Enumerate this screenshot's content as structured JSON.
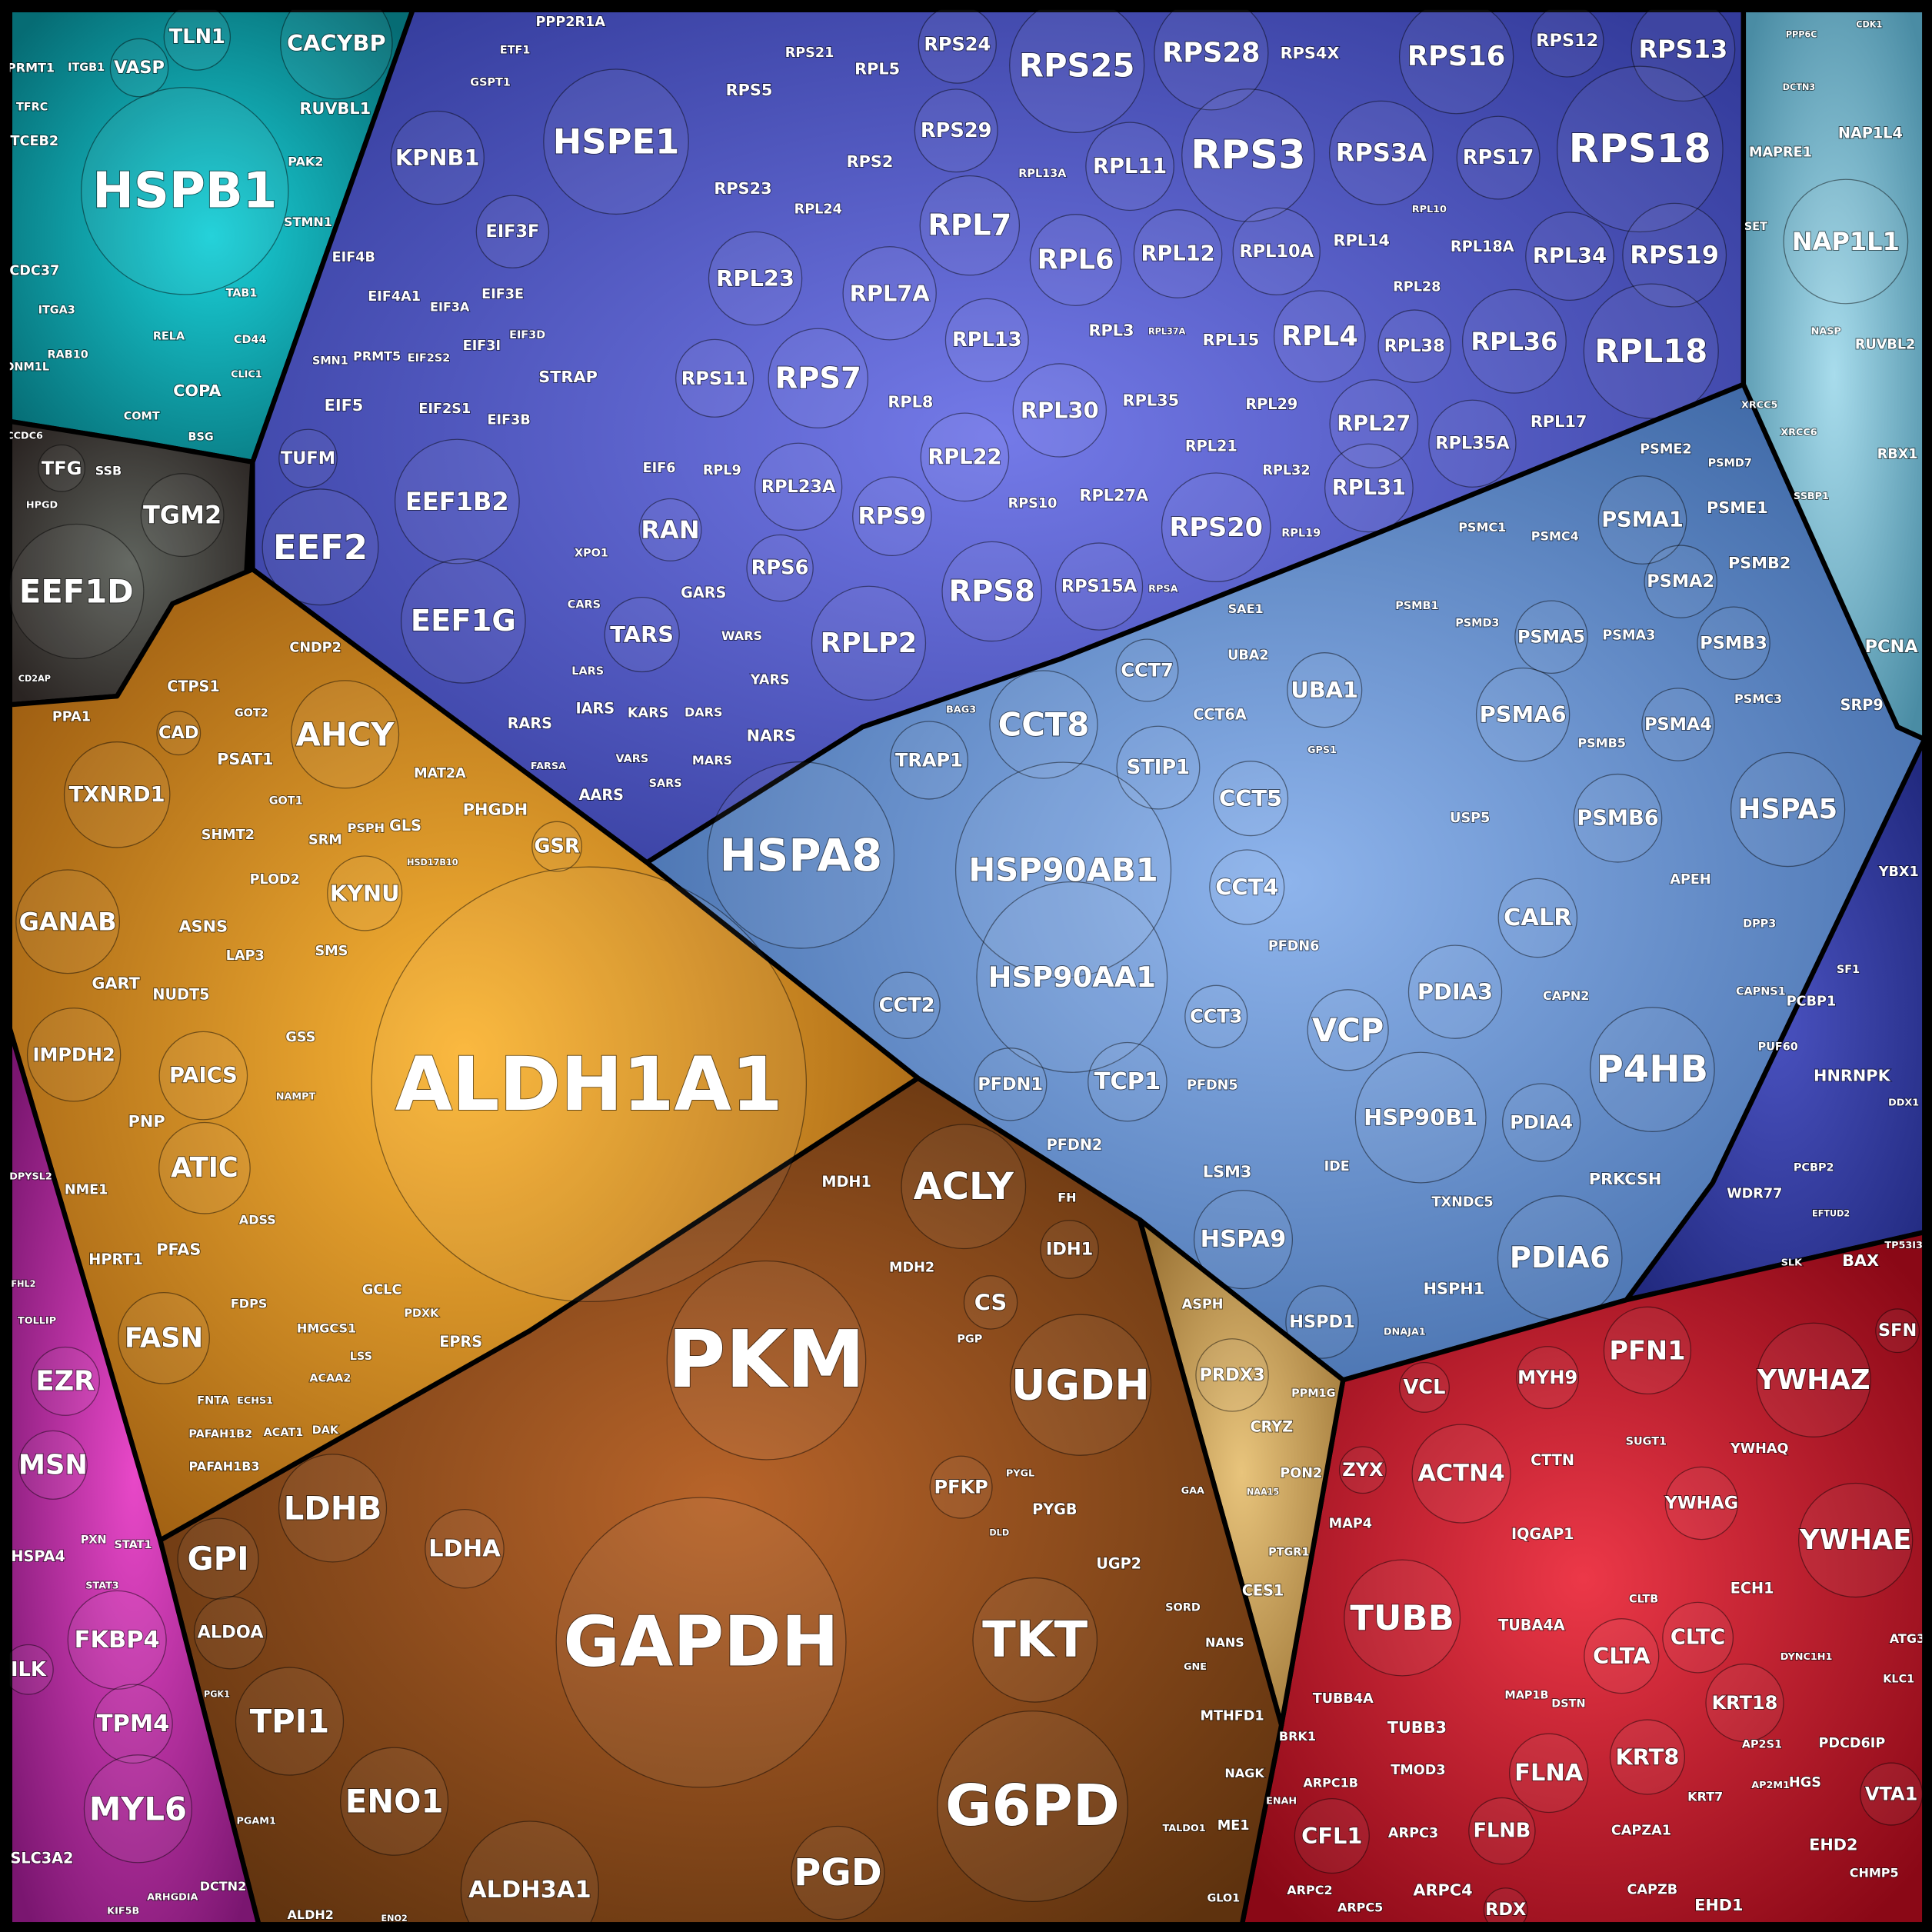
{
  "chart_data": {
    "type": "voronoi-treemap",
    "background": "#000000",
    "cell_label_color": "#ffffff"
  },
  "regions": [
    {
      "id": "teal",
      "colors": [
        "#1ad0d8",
        "#066c74"
      ],
      "labels": [
        "HSPB1",
        "CACYBP",
        "TLN1",
        "VASP",
        "RUVBL1",
        "PRMT1",
        "TCEB2",
        "CDC37",
        "COPA",
        "STMN1",
        "PAK2",
        "TFRC",
        "ITGB1",
        "DNM1L",
        "RAB10",
        "ITGA3",
        "CD44",
        "CLIC1",
        "COMT",
        "BSG",
        "TAB1",
        "RELA"
      ]
    },
    {
      "id": "gray",
      "colors": [
        "#5e625c",
        "#2a2422"
      ],
      "labels": [
        "TFG",
        "SSB",
        "TGM2",
        "EEF1D",
        "CCDC6",
        "HPGD",
        "CD2AP"
      ]
    },
    {
      "id": "purple",
      "colors": [
        "#747ae8",
        "#343c9c"
      ],
      "labels": [
        "HSPE1",
        "KPNB1",
        "PPP2R1A",
        "ETF1",
        "GSPT1",
        "EIF3F",
        "EIF4B",
        "EIF4A1",
        "EIF3A",
        "EIF3E",
        "EIF3I",
        "EIF3D",
        "STRAP",
        "EIF5",
        "EIF2S1",
        "EIF3B",
        "EIF2S2",
        "PRMT5",
        "SMN1",
        "TUFM",
        "EEF1B2",
        "EEF2",
        "EEF1G",
        "RAN",
        "EIF6",
        "TARS",
        "GARS",
        "WARS",
        "YARS",
        "NARS",
        "RARS",
        "IARS",
        "KARS",
        "DARS",
        "MARS",
        "AARS",
        "VARS",
        "SARS",
        "LARS",
        "CARS",
        "FARSA",
        "XPO1",
        "RPS5",
        "RPS21",
        "RPL5",
        "RPS24",
        "RPS25",
        "RPS28",
        "RPS4X",
        "RPS16",
        "RPS12",
        "RPS13",
        "RPS29",
        "RPS2",
        "RPS23",
        "RPL24",
        "RPL7",
        "RPS3",
        "RPS3A",
        "RPS17",
        "RPS18",
        "RPL11",
        "RPL13A",
        "RPL6",
        "RPL12",
        "RPL10A",
        "RPL14",
        "RPL18A",
        "RPL34",
        "RPS19",
        "RPL10",
        "RPL28",
        "RPL23",
        "RPL7A",
        "RPL13",
        "RPL3",
        "RPL37A",
        "RPL15",
        "RPL4",
        "RPL38",
        "RPL36",
        "RPL18",
        "RPS11",
        "RPS7",
        "RPL8",
        "RPL30",
        "RPL35",
        "RPL29",
        "RPL27",
        "RPL17",
        "RPL35A",
        "RPL9",
        "RPL23A",
        "RPL22",
        "RPL21",
        "RPL32",
        "RPL31",
        "RPS9",
        "RPS10",
        "RPL27A",
        "RPS20",
        "RPL19",
        "RPS6",
        "RPS8",
        "RPS15A",
        "RPSA",
        "RPLP2"
      ]
    },
    {
      "id": "lightblue",
      "colors": [
        "#8eb4ec",
        "#3c66a4"
      ],
      "labels": [
        "HSPA8",
        "CCT8",
        "TRAP1",
        "STIP1",
        "CCT7",
        "CCT6A",
        "CCT5",
        "HSP90AB1",
        "CCT4",
        "HSP90AA1",
        "CCT2",
        "CCT3",
        "PFDN6",
        "PFDN1",
        "TCP1",
        "PFDN5",
        "PFDN2",
        "LSM3",
        "HSPA9",
        "HSPD1",
        "VCP",
        "HSP90B1",
        "PDIA3",
        "PDIA4",
        "PDIA6",
        "HSPH1",
        "CALR",
        "P4HB",
        "PRKCSH",
        "CAPN2",
        "TXNDC5",
        "DNAJA1",
        "IDE",
        "UBA1",
        "UBA2",
        "SAE1",
        "USP5",
        "PSMA1",
        "PSME1",
        "PSMA2",
        "PSMB2",
        "PSMA5",
        "PSMA3",
        "PSMB3",
        "PSMA6",
        "PSMA4",
        "PSMB6",
        "HSPA5",
        "PSME2",
        "PSMD7",
        "PSMC4",
        "PSMC1",
        "PSMD3",
        "PSMB1",
        "PSMB5",
        "PSMC3",
        "APEH",
        "DPP3",
        "CAPNS1",
        "SRP9",
        "PCNA",
        "BAG3",
        "GPS1"
      ]
    },
    {
      "id": "rightteal",
      "colors": [
        "#a8dcec",
        "#4a8ca4"
      ],
      "labels": [
        "NAP1L1",
        "NAP1L4",
        "MAPRE1",
        "SET",
        "RUVBL2",
        "NASP",
        "PPP6C",
        "CDK1",
        "DCTN3",
        "XRCC5",
        "XRCC6",
        "RBX1",
        "SSBP1"
      ]
    },
    {
      "id": "darkblue",
      "colors": [
        "#4a52c0",
        "#222a80"
      ],
      "labels": [
        "YBX1",
        "PCBP1",
        "HNRNPK",
        "PUF60",
        "WDR77",
        "PCBP2",
        "SF1",
        "DDX1",
        "EFTUD2"
      ]
    },
    {
      "id": "red",
      "colors": [
        "#ec3848",
        "#8a0816"
      ],
      "labels": [
        "PFN1",
        "YWHAZ",
        "SFN",
        "BAX",
        "YWHAQ",
        "YWHAG",
        "YWHAE",
        "SUGT1",
        "VCL",
        "MYH9",
        "ACTN4",
        "ZYX",
        "CTTN",
        "IQGAP1",
        "MAP4",
        "TUBB",
        "TUBA4A",
        "TUBB4A",
        "TUBB3",
        "FLNA",
        "FLNB",
        "TMOD3",
        "MAP1B",
        "DSTN",
        "BRK1",
        "ARPC1B",
        "CFL1",
        "ARPC3",
        "ARPC4",
        "ARPC2",
        "ARPC5",
        "RDX",
        "ENAH",
        "ECH1",
        "CLTA",
        "CLTC",
        "CLTB",
        "KRT18",
        "KRT8",
        "KRT7",
        "CAPZA1",
        "CAPZB",
        "EHD1",
        "PDCD6IP",
        "VTA1",
        "HGS",
        "EHD2",
        "CHMP5",
        "AP2S1",
        "AP2M1",
        "ATG3",
        "KLC1",
        "DYNC1H1",
        "TP53I3",
        "SLK"
      ]
    },
    {
      "id": "tan",
      "colors": [
        "#e8c47c",
        "#9a7234"
      ],
      "labels": [
        "PRDX3",
        "CRYZ",
        "PON2",
        "PPM1G",
        "CES1",
        "PTGR1",
        "ASPH",
        "NAA15"
      ]
    },
    {
      "id": "brown",
      "colors": [
        "#b8642a",
        "#5e320e"
      ],
      "labels": [
        "PKM",
        "GAPDH",
        "ACLY",
        "UGDH",
        "TKT",
        "G6PD",
        "PGD",
        "LDHB",
        "LDHA",
        "GPI",
        "ALDOA",
        "TPI1",
        "ENO1",
        "ALDH3A1",
        "MDH1",
        "MDH2",
        "FH",
        "IDH1",
        "CS",
        "PGP",
        "PFKP",
        "PYGB",
        "PYGL",
        "UGP2",
        "GAA",
        "SORD",
        "NANS",
        "GNE",
        "MTHFD1",
        "NAGK",
        "ME1",
        "GLO1",
        "TALDO1",
        "ALDH2",
        "PGAM1",
        "PGK1",
        "ENO2",
        "DLD"
      ]
    },
    {
      "id": "orange",
      "colors": [
        "#fbb636",
        "#9a5a10"
      ],
      "labels": [
        "ALDH1A1",
        "AHCY",
        "GSR",
        "KYNU",
        "PHGDH",
        "MAT2A",
        "GLS",
        "PSPH",
        "SRM",
        "PSAT1",
        "SHMT2",
        "GOT1",
        "PLOD2",
        "CAD",
        "CTPS1",
        "CNDP2",
        "TXNRD1",
        "GANAB",
        "ASNS",
        "LAP3",
        "SMS",
        "GSS",
        "GART",
        "NUDT5",
        "IMPDH2",
        "PAICS",
        "PNP",
        "ATIC",
        "PFAS",
        "NME1",
        "HPRT1",
        "ADSS",
        "NAMPT",
        "FASN",
        "FDPS",
        "HMGCS1",
        "ACAT1",
        "PAFAH1B2",
        "PAFAH1B3",
        "FNTA",
        "ECHS1",
        "ACAA2",
        "DAK",
        "LSS",
        "GCLC",
        "EPRS",
        "PDXK",
        "PPA1",
        "GOT2",
        "HSD17B10"
      ]
    },
    {
      "id": "magenta",
      "colors": [
        "#e848c8",
        "#7a1670"
      ],
      "labels": [
        "EZR",
        "MSN",
        "HSPA4",
        "FKBP4",
        "ILK",
        "TPM4",
        "MYL6",
        "SLC3A2",
        "DCTN2",
        "KIF5B",
        "ARHGDIA",
        "PXN",
        "STAT1",
        "STAT3",
        "DPYSL2",
        "TOLLIP",
        "FHL2"
      ]
    }
  ]
}
